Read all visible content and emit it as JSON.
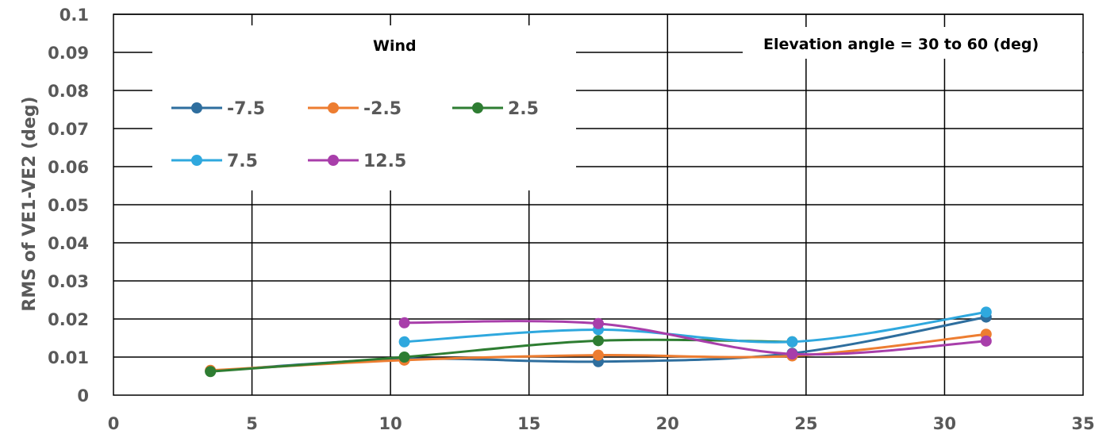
{
  "chart_data": {
    "type": "line",
    "title": "",
    "xlabel": "",
    "ylabel": "RMS of VE1-VE2 (deg)",
    "xlim": [
      0,
      35
    ],
    "ylim": [
      0,
      0.1
    ],
    "x_ticks": [
      "0",
      "5",
      "10",
      "15",
      "20",
      "25",
      "30",
      "35"
    ],
    "y_ticks": [
      "0",
      "0.01",
      "0.02",
      "0.03",
      "0.04",
      "0.05",
      "0.06",
      "0.07",
      "0.08",
      "0.09",
      "0.1"
    ],
    "grid": true,
    "legend_title": "Wind",
    "legend_placement": "top-left",
    "annotation": "Elevation angle = 30 to 60 (deg)",
    "series": [
      {
        "name": "-7.5",
        "color": "#2E6E9E",
        "x": [
          3.5,
          10.5,
          17.5,
          24.5,
          31.5
        ],
        "y": [
          0.0063,
          0.0095,
          0.0088,
          0.011,
          0.0205
        ]
      },
      {
        "name": "-2.5",
        "color": "#ED7D31",
        "x": [
          3.5,
          10.5,
          17.5,
          24.5,
          31.5
        ],
        "y": [
          0.0065,
          0.0092,
          0.0105,
          0.0103,
          0.016
        ]
      },
      {
        "name": "2.5",
        "color": "#2E7D32",
        "x": [
          3.5,
          10.5,
          17.5,
          24.5
        ],
        "y": [
          0.0062,
          0.01,
          0.0143,
          0.014
        ]
      },
      {
        "name": "7.5",
        "color": "#2FA8DE",
        "x": [
          10.5,
          17.5,
          24.5,
          31.5
        ],
        "y": [
          0.014,
          0.0172,
          0.014,
          0.0218
        ]
      },
      {
        "name": "12.5",
        "color": "#A83EAA",
        "x": [
          10.5,
          17.5,
          24.5,
          31.5
        ],
        "y": [
          0.019,
          0.0188,
          0.0108,
          0.0142
        ]
      }
    ]
  }
}
